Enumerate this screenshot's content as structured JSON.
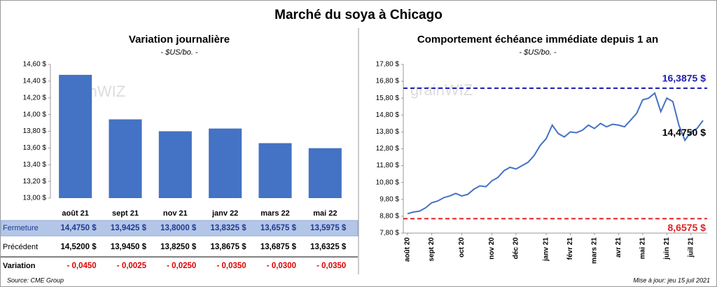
{
  "title": "Marché du soya à Chicago",
  "watermark": "grainWIZ",
  "chart_data": [
    {
      "type": "bar",
      "title": "Variation journalière",
      "subtitle": "- $US/bo. -",
      "categories": [
        "août 21",
        "sept 21",
        "nov 21",
        "janv 22",
        "mars 22",
        "mai 22"
      ],
      "values": [
        14.475,
        13.9425,
        13.8,
        13.8325,
        13.6575,
        13.5975
      ],
      "color": "#4472c4",
      "ylim": [
        13.0,
        14.6
      ],
      "yticks": [
        {
          "value": 13.0,
          "label": "13,00 $"
        },
        {
          "value": 13.2,
          "label": "13,20 $"
        },
        {
          "value": 13.4,
          "label": "13,40 $"
        },
        {
          "value": 13.6,
          "label": "13,60 $"
        },
        {
          "value": 13.8,
          "label": "13,80 $"
        },
        {
          "value": 14.0,
          "label": "14,00 $"
        },
        {
          "value": 14.2,
          "label": "14,20 $"
        },
        {
          "value": 14.4,
          "label": "14,40 $"
        },
        {
          "value": 14.6,
          "label": "14,60 $"
        }
      ],
      "grid": false
    },
    {
      "type": "line",
      "title": "Comportement échéance immédiate depuis 1 an",
      "subtitle": "- $US/bo. -",
      "categories": [
        "août 20",
        null,
        null,
        null,
        "sept 20",
        null,
        null,
        null,
        null,
        "oct 20",
        null,
        null,
        null,
        null,
        "nov 20",
        null,
        null,
        null,
        "déc 20",
        null,
        null,
        null,
        null,
        "janv 21",
        null,
        null,
        null,
        "févr 21",
        null,
        null,
        null,
        "mars 21",
        null,
        null,
        null,
        "avr 21",
        null,
        null,
        null,
        "mai 21",
        null,
        null,
        null,
        "juin 21",
        null,
        null,
        null,
        "juil 21",
        null,
        null
      ],
      "values": [
        8.95,
        9.05,
        9.1,
        9.3,
        9.6,
        9.7,
        9.9,
        10.0,
        10.15,
        10.0,
        10.1,
        10.4,
        10.6,
        10.55,
        10.9,
        11.1,
        11.5,
        11.7,
        11.6,
        11.8,
        12.0,
        12.4,
        13.0,
        13.4,
        14.2,
        13.7,
        13.5,
        13.8,
        13.75,
        13.9,
        14.2,
        14.0,
        14.3,
        14.1,
        14.25,
        14.2,
        14.1,
        14.5,
        14.9,
        15.7,
        15.8,
        16.1,
        15.0,
        15.8,
        15.6,
        14.2,
        13.3,
        13.8,
        14.0,
        14.475
      ],
      "color": "#4472c4",
      "ylim": [
        7.8,
        17.8
      ],
      "yticks": [
        {
          "value": 7.8,
          "label": "7,80 $"
        },
        {
          "value": 8.8,
          "label": "8,80 $"
        },
        {
          "value": 9.8,
          "label": "9,80 $"
        },
        {
          "value": 10.8,
          "label": "10,80 $"
        },
        {
          "value": 11.8,
          "label": "11,80 $"
        },
        {
          "value": 12.8,
          "label": "12,80 $"
        },
        {
          "value": 13.8,
          "label": "13,80 $"
        },
        {
          "value": 14.8,
          "label": "14,80 $"
        },
        {
          "value": 15.8,
          "label": "15,80 $"
        },
        {
          "value": 16.8,
          "label": "16,80 $"
        },
        {
          "value": 17.8,
          "label": "17,80 $"
        }
      ],
      "reference_lines": [
        {
          "value": 16.3875,
          "label": "16,3875 $",
          "color": "#2020b0"
        },
        {
          "value": 8.6575,
          "label": "8,6575 $",
          "color": "#e02020"
        }
      ],
      "last_label": "14,4750 $"
    }
  ],
  "table": {
    "rows": [
      {
        "label": "Fermeture",
        "cells": [
          "14,4750 $",
          "13,9425 $",
          "13,8000 $",
          "13,8325 $",
          "13,6575 $",
          "13,5975 $"
        ]
      },
      {
        "label": "Précédent",
        "cells": [
          "14,5200 $",
          "13,9450 $",
          "13,8250 $",
          "13,8675 $",
          "13,6875 $",
          "13,6325 $"
        ]
      },
      {
        "label": "Variation",
        "cells": [
          "- 0,0450",
          "- 0,0025",
          "- 0,0250",
          "- 0,0350",
          "- 0,0300",
          "- 0,0350"
        ]
      }
    ]
  },
  "source": "Source: CME Group",
  "updated": "Mise à jour: jeu 15 juil 2021"
}
